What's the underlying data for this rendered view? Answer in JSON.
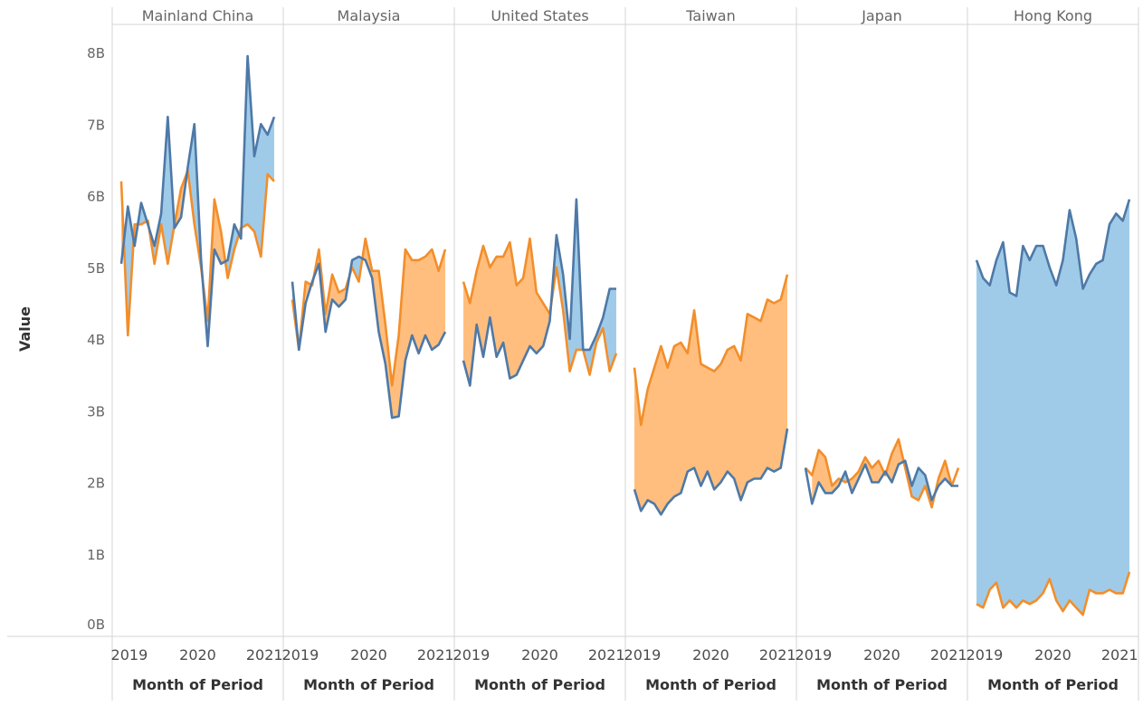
{
  "chart_data": {
    "type": "line",
    "subtype": "difference-band small multiples",
    "y_axis": {
      "label": "Value",
      "ylim": [
        0,
        8.2
      ],
      "ticks": [
        0,
        1,
        2,
        3,
        4,
        5,
        6,
        7,
        8
      ],
      "tick_labels": [
        "0B",
        "1B",
        "2B",
        "3B",
        "4B",
        "5B",
        "6B",
        "7B",
        "8B"
      ]
    },
    "x_axis": {
      "label": "Month of Period",
      "tick_labels": [
        "2019",
        "2020",
        "2021"
      ],
      "range": [
        "2018-12",
        "2021-06"
      ]
    },
    "colors": {
      "series_blue": "#4e79a7",
      "series_orange": "#f28e2b",
      "band_blue": "#a0cbe8",
      "band_orange": "#ffbe7d"
    },
    "grid": false,
    "panels": [
      {
        "name": "Mainland China",
        "series_blue": [
          5.05,
          5.85,
          5.3,
          5.9,
          5.6,
          5.3,
          5.75,
          7.1,
          5.55,
          5.7,
          6.4,
          7.0,
          5.1,
          3.9,
          5.25,
          5.05,
          5.1,
          5.6,
          5.4,
          7.95,
          6.55,
          7.0,
          6.85,
          7.1
        ],
        "series_orange": [
          6.2,
          4.05,
          5.6,
          5.6,
          5.65,
          5.05,
          5.6,
          5.05,
          5.6,
          6.1,
          6.35,
          5.6,
          5.0,
          4.25,
          5.95,
          5.5,
          4.85,
          5.25,
          5.55,
          5.6,
          5.5,
          5.15,
          6.3,
          6.2
        ]
      },
      {
        "name": "Malaysia",
        "series_blue": [
          4.8,
          3.85,
          4.5,
          4.8,
          5.05,
          4.1,
          4.55,
          4.45,
          4.55,
          5.1,
          5.15,
          5.1,
          4.85,
          4.1,
          3.65,
          2.9,
          2.92,
          3.7,
          4.05,
          3.8,
          4.05,
          3.85,
          3.92,
          4.1
        ],
        "series_orange": [
          4.55,
          3.85,
          4.8,
          4.75,
          5.25,
          4.35,
          4.9,
          4.65,
          4.7,
          5.0,
          4.8,
          5.4,
          4.95,
          4.95,
          4.2,
          3.35,
          4.05,
          5.25,
          5.1,
          5.1,
          5.15,
          5.25,
          4.95,
          5.25
        ]
      },
      {
        "name": "United States",
        "series_blue": [
          3.7,
          3.35,
          4.2,
          3.75,
          4.3,
          3.75,
          3.95,
          3.45,
          3.5,
          3.7,
          3.9,
          3.8,
          3.9,
          4.25,
          5.45,
          4.9,
          4.0,
          5.95,
          3.85,
          3.85,
          4.05,
          4.3,
          4.7,
          4.7
        ],
        "series_orange": [
          4.8,
          4.5,
          4.95,
          5.3,
          5.0,
          5.15,
          5.15,
          5.35,
          4.75,
          4.85,
          5.4,
          4.65,
          4.5,
          4.35,
          5.0,
          4.4,
          3.55,
          3.85,
          3.85,
          3.5,
          3.95,
          4.15,
          3.55,
          3.8
        ]
      },
      {
        "name": "Taiwan",
        "series_blue": [
          1.9,
          1.6,
          1.75,
          1.7,
          1.55,
          1.7,
          1.8,
          1.85,
          2.15,
          2.2,
          1.95,
          2.15,
          1.9,
          2.0,
          2.15,
          2.05,
          1.75,
          2.0,
          2.05,
          2.05,
          2.2,
          2.15,
          2.2,
          2.75
        ],
        "series_orange": [
          3.6,
          2.8,
          3.3,
          3.6,
          3.9,
          3.6,
          3.9,
          3.95,
          3.8,
          4.4,
          3.65,
          3.6,
          3.55,
          3.65,
          3.85,
          3.9,
          3.7,
          4.35,
          4.3,
          4.25,
          4.55,
          4.5,
          4.55,
          4.9
        ]
      },
      {
        "name": "Japan",
        "series_blue": [
          2.2,
          1.7,
          2.0,
          1.85,
          1.85,
          1.95,
          2.15,
          1.85,
          2.05,
          2.25,
          2.0,
          2.0,
          2.15,
          2.0,
          2.25,
          2.3,
          1.95,
          2.2,
          2.1,
          1.75,
          1.95,
          2.05,
          1.95,
          1.95
        ],
        "series_orange": [
          2.2,
          2.1,
          2.45,
          2.35,
          1.95,
          2.05,
          2.0,
          2.05,
          2.15,
          2.35,
          2.2,
          2.3,
          2.1,
          2.4,
          2.6,
          2.2,
          1.8,
          1.75,
          1.95,
          1.65,
          2.05,
          2.3,
          1.95,
          2.2
        ]
      },
      {
        "name": "Hong Kong",
        "series_blue": [
          5.1,
          4.85,
          4.75,
          5.1,
          5.35,
          4.65,
          4.6,
          5.3,
          5.1,
          5.3,
          5.3,
          5.0,
          4.75,
          5.1,
          5.8,
          5.4,
          4.7,
          4.9,
          5.05,
          5.1,
          5.6,
          5.75,
          5.65,
          5.95
        ],
        "series_orange": [
          0.3,
          0.25,
          0.5,
          0.6,
          0.25,
          0.35,
          0.25,
          0.35,
          0.3,
          0.35,
          0.45,
          0.65,
          0.35,
          0.2,
          0.35,
          0.25,
          0.15,
          0.5,
          0.45,
          0.45,
          0.5,
          0.45,
          0.45,
          0.75
        ]
      }
    ]
  }
}
